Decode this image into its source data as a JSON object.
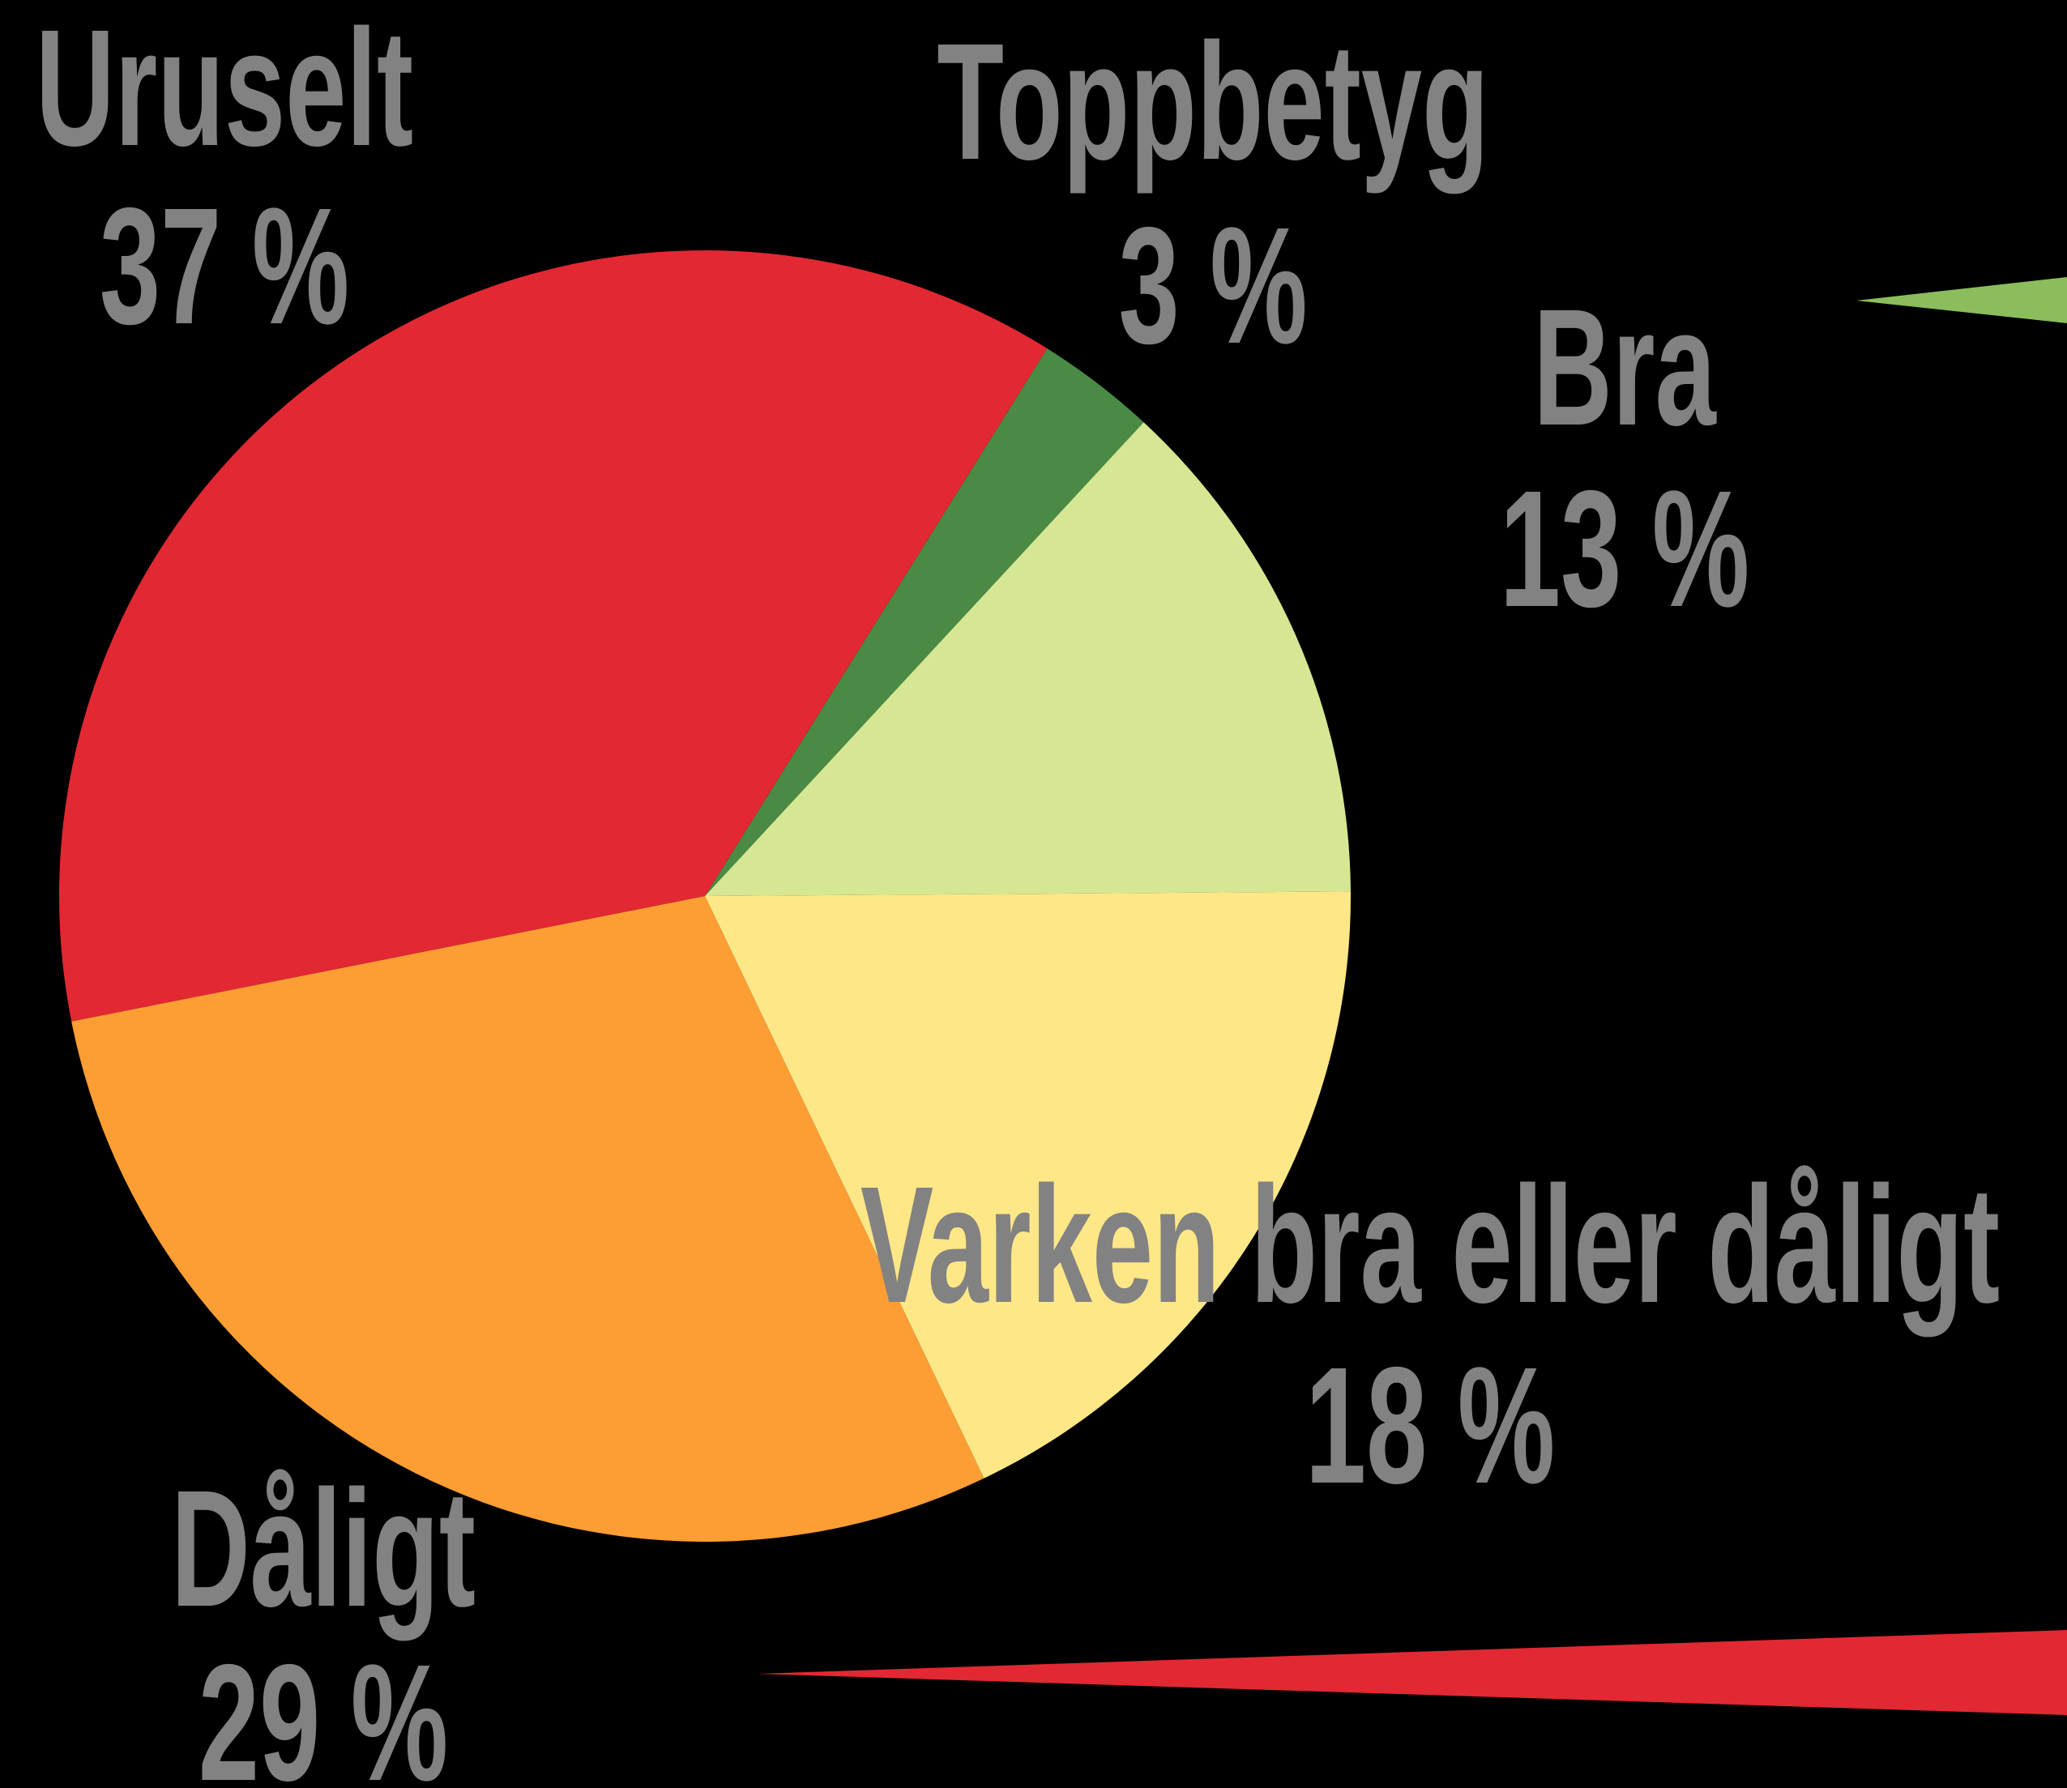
{
  "chart_data": {
    "type": "pie",
    "categories": [
      "Toppbetyg",
      "Bra",
      "Varken bra eller dåligt",
      "Dåligt",
      "Uruselt"
    ],
    "values": [
      3,
      13,
      18,
      29,
      37
    ],
    "value_labels": [
      "3 %",
      "13 %",
      "18 %",
      "29 %",
      "37 %"
    ],
    "colors": [
      "#4a8a44",
      "#d6e793",
      "#fee787",
      "#fd9e34",
      "#e22832"
    ]
  }
}
